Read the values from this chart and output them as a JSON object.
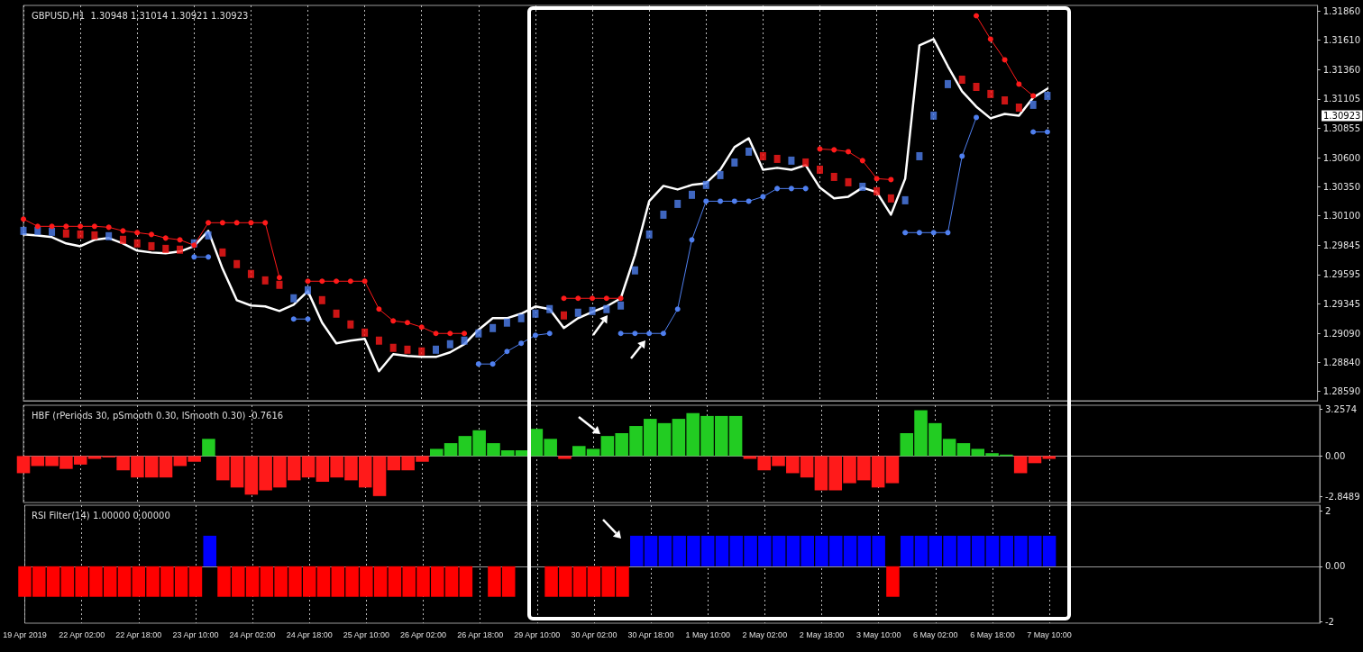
{
  "chart_data": [
    {
      "type": "line",
      "title": "GBPUSD,H1  1.30948 1.31014 1.30921 1.30923",
      "categories": [
        null,
        null,
        null,
        null,
        null,
        null,
        null,
        null,
        null,
        null,
        null,
        null,
        null,
        null,
        null,
        null,
        null,
        null,
        null,
        null,
        null,
        null,
        null,
        null,
        null,
        null,
        null,
        null,
        null,
        null,
        null,
        null,
        null,
        null,
        null,
        null,
        null,
        null,
        null,
        null,
        null,
        null,
        null,
        null,
        null,
        null,
        null,
        null,
        null,
        null,
        null,
        null,
        null,
        null,
        null,
        null,
        null,
        null,
        null,
        null,
        null,
        null,
        null,
        null,
        null,
        null,
        null,
        null,
        null,
        null,
        null,
        null,
        null,
        null,
        null,
        null,
        null,
        null,
        null,
        null,
        null,
        null,
        null,
        null,
        null,
        null,
        null,
        null,
        null,
        null,
        null,
        null
      ],
      "series": [
        {
          "color": "#ffffff",
          "marker": "none",
          "values": [
            1.2994,
            1.29932,
            1.29917,
            1.29863,
            1.29839,
            1.29894,
            1.29909,
            1.29863,
            1.29801,
            1.29785,
            1.29778,
            1.29793,
            1.29839,
            1.29971,
            1.29646,
            1.29375,
            1.29329,
            1.29321,
            1.29282,
            1.29336,
            1.29452,
            1.29182,
            1.29004,
            1.29027,
            1.29042,
            1.28764,
            1.28911,
            1.28895,
            1.28887,
            1.28887,
            1.28926,
            1.28996,
            1.2912,
            1.2922,
            1.2922,
            1.29259,
            1.29321,
            1.29298,
            1.29135,
            1.2922,
            1.29274,
            1.29321,
            1.29391,
            1.29762,
            1.30226,
            1.30358,
            1.30327,
            1.30366,
            1.30381,
            1.30497,
            1.30691,
            1.30768,
            1.30497,
            1.30513,
            1.30497,
            1.30536,
            1.30343,
            1.3025,
            1.30265,
            1.30343,
            1.30304,
            1.3011,
            1.3042,
            1.31566,
            1.3162,
            1.31387,
            1.31171,
            1.31039,
            1.30939,
            1.30977,
            1.30962,
            1.31117,
            1.31194,
            null,
            null,
            null,
            null,
            null,
            null,
            null,
            null,
            null,
            null,
            null,
            null,
            null,
            null,
            null,
            null,
            null,
            null,
            null
          ]
        },
        {
          "type": "scatter",
          "color": "#ff1a1a",
          "marker": "square",
          "values": [
            null,
            null,
            null,
            1.29948,
            1.2994,
            1.29932,
            null,
            1.29894,
            1.29863,
            1.29839,
            1.29816,
            1.29809,
            null,
            null,
            1.29785,
            1.29685,
            1.296,
            1.29545,
            1.29507,
            null,
            null,
            1.29375,
            1.29259,
            1.29166,
            1.29096,
            1.29027,
            1.28965,
            1.28949,
            1.28934,
            null,
            null,
            null,
            null,
            null,
            null,
            null,
            null,
            null,
            1.29244,
            null,
            null,
            null,
            null,
            null,
            null,
            null,
            null,
            null,
            null,
            null,
            null,
            null,
            1.30613,
            1.3059,
            null,
            1.30559,
            1.30497,
            1.30435,
            1.30389,
            null,
            1.30312,
            1.3025,
            null,
            null,
            null,
            null,
            1.31271,
            1.31209,
            1.31148,
            1.31093,
            1.31031,
            null,
            null,
            null,
            null,
            null,
            null,
            null,
            null,
            null,
            null,
            null,
            null,
            null,
            null,
            null,
            null,
            null,
            null,
            null,
            null,
            null
          ]
        },
        {
          "type": "scatter",
          "color": "#4f7fef",
          "marker": "square",
          "values": [
            1.29971,
            1.29971,
            1.29963,
            null,
            null,
            null,
            1.29925,
            null,
            null,
            null,
            null,
            null,
            1.29863,
            1.29932,
            null,
            null,
            null,
            null,
            null,
            1.29391,
            1.2946,
            null,
            null,
            null,
            null,
            null,
            null,
            null,
            null,
            1.28949,
            1.28996,
            1.29027,
            1.29089,
            1.29135,
            1.29182,
            1.2922,
            1.29259,
            1.29298,
            null,
            1.29267,
            1.29282,
            1.29298,
            1.29329,
            1.29631,
            1.2994,
            1.3011,
            1.30203,
            1.30281,
            1.30366,
            1.30451,
            1.30559,
            1.30652,
            null,
            null,
            1.30575,
            null,
            null,
            null,
            null,
            1.3035,
            null,
            null,
            1.30234,
            1.30613,
            1.30962,
            1.31233,
            null,
            null,
            null,
            null,
            null,
            1.31055,
            1.31132,
            null,
            null,
            null,
            null,
            null,
            null,
            null,
            null,
            null,
            null,
            null,
            null,
            null,
            null,
            null,
            null,
            null,
            null,
            null
          ]
        },
        {
          "type": "line",
          "color": "#ff1a1a",
          "marker": "circle",
          "values": [
            1.30072,
            1.3001,
            1.3001,
            1.3001,
            1.3001,
            1.3001,
            1.30002,
            1.29971,
            1.29956,
            1.2994,
            1.29909,
            1.29894,
            1.29847,
            1.30041,
            1.30041,
            1.30041,
            1.30041,
            1.30041,
            1.29569,
            null,
            1.29538,
            1.29538,
            1.29538,
            1.29538,
            1.29538,
            1.29298,
            1.29197,
            1.29182,
            1.29143,
            1.29089,
            1.29089,
            1.29089,
            null,
            null,
            null,
            null,
            null,
            null,
            1.29391,
            1.29391,
            1.29391,
            1.29391,
            1.29391,
            null,
            null,
            null,
            null,
            null,
            null,
            null,
            null,
            null,
            null,
            null,
            null,
            null,
            1.30675,
            1.30668,
            1.30652,
            1.30575,
            1.3042,
            1.30412,
            null,
            null,
            null,
            null,
            null,
            1.31821,
            1.3162,
            1.31442,
            1.31233,
            1.31132,
            null,
            null,
            null,
            null,
            null,
            null,
            null,
            null,
            null,
            null,
            null,
            null,
            null,
            null,
            null,
            null,
            null,
            null,
            null,
            null
          ]
        },
        {
          "type": "line",
          "color": "#4f7fef",
          "marker": "circle",
          "values": [
            null,
            null,
            null,
            null,
            null,
            null,
            null,
            null,
            null,
            null,
            null,
            null,
            1.29747,
            1.29747,
            null,
            null,
            null,
            null,
            null,
            1.29213,
            1.29213,
            null,
            null,
            null,
            null,
            null,
            null,
            null,
            null,
            null,
            null,
            null,
            1.28826,
            1.28826,
            1.28934,
            1.29004,
            1.29073,
            1.29089,
            null,
            null,
            null,
            null,
            1.29089,
            1.29089,
            1.29089,
            1.29089,
            1.29298,
            1.29894,
            1.30226,
            1.30226,
            1.30226,
            1.30226,
            1.30265,
            1.30335,
            1.30335,
            1.30335,
            null,
            null,
            null,
            null,
            null,
            null,
            1.29956,
            1.29956,
            1.29956,
            1.29956,
            1.30613,
            1.30946,
            null,
            null,
            null,
            1.30822,
            1.30822,
            null,
            null,
            null,
            null,
            null,
            null,
            null,
            null,
            null,
            null,
            null,
            null,
            null,
            null,
            null,
            null,
            null,
            null,
            null
          ]
        }
      ],
      "ylim": [
        1.2851,
        1.3191
      ],
      "yticks": [
        {
          "value": 1.2859,
          "label": "1.28590"
        },
        {
          "value": 1.2884,
          "label": "1.28840"
        },
        {
          "value": 1.2909,
          "label": "1.29090"
        },
        {
          "value": 1.29345,
          "label": "1.29345"
        },
        {
          "value": 1.29595,
          "label": "1.29595"
        },
        {
          "value": 1.29845,
          "label": "1.29845"
        },
        {
          "value": 1.301,
          "label": "1.30100"
        },
        {
          "value": 1.3035,
          "label": "1.30350"
        },
        {
          "value": 1.306,
          "label": "1.30600"
        },
        {
          "value": 1.30855,
          "label": "1.30855"
        },
        {
          "value": 1.31105,
          "label": "1.31105"
        },
        {
          "value": 1.3136,
          "label": "1.31360"
        },
        {
          "value": 1.3161,
          "label": "1.31610"
        },
        {
          "value": 1.3186,
          "label": "1.31860"
        }
      ],
      "annotations": [
        "1.30923"
      ],
      "grid": "x",
      "tick_labels": "y"
    },
    {
      "type": "bar",
      "title": "HBF (rPeriods 30, pSmooth 0.30, lSmooth 0.30) -0.7616",
      "categories": [
        null,
        null,
        null,
        null,
        null,
        null,
        null,
        null,
        null,
        null,
        null,
        null,
        null,
        null,
        null,
        null,
        null,
        null,
        null,
        null,
        null,
        null,
        null,
        null,
        null,
        null,
        null,
        null,
        null,
        null,
        null,
        null,
        null,
        null,
        null,
        null,
        null,
        null,
        null,
        null,
        null,
        null,
        null,
        null,
        null,
        null,
        null,
        null,
        null,
        null,
        null,
        null,
        null,
        null,
        null,
        null,
        null,
        null,
        null,
        null,
        null,
        null,
        null,
        null,
        null,
        null,
        null,
        null,
        null,
        null,
        null,
        null,
        null,
        null,
        null,
        null,
        null,
        null,
        null,
        null,
        null,
        null,
        null,
        null,
        null,
        null,
        null,
        null,
        null,
        null,
        null,
        null
      ],
      "series": [
        {
          "color": "#22cc22",
          "values": [
            null,
            null,
            null,
            null,
            null,
            null,
            null,
            null,
            null,
            null,
            null,
            null,
            null,
            1.2,
            null,
            null,
            null,
            null,
            null,
            null,
            null,
            null,
            null,
            null,
            null,
            null,
            null,
            null,
            null,
            0.5,
            0.9,
            1.4,
            1.8,
            0.9,
            0.4,
            0.4,
            1.9,
            1.2,
            null,
            0.7,
            0.5,
            1.4,
            1.6,
            2.1,
            2.6,
            2.3,
            2.6,
            3.0,
            2.8,
            2.8,
            2.8,
            null,
            null,
            null,
            null,
            null,
            null,
            null,
            null,
            null,
            null,
            null,
            1.6,
            3.2,
            2.3,
            1.2,
            0.9,
            0.5,
            0.2,
            0.1,
            null,
            null,
            null,
            null,
            null,
            null,
            null,
            null,
            null,
            null,
            null,
            null,
            null,
            null,
            null,
            null,
            null,
            null,
            null,
            null,
            null,
            null
          ]
        },
        {
          "color": "#ff1a1a",
          "values": [
            -1.2,
            -0.7,
            -0.7,
            -0.9,
            -0.6,
            -0.2,
            -0.1,
            -1.0,
            -1.5,
            -1.5,
            -1.5,
            -0.7,
            -0.4,
            null,
            -1.7,
            -2.2,
            -2.7,
            -2.4,
            -2.2,
            -1.7,
            -1.5,
            -1.8,
            -1.5,
            -1.7,
            -2.2,
            -2.8,
            -1.0,
            -1.0,
            -0.4,
            null,
            null,
            null,
            null,
            null,
            null,
            null,
            null,
            null,
            -0.2,
            null,
            null,
            null,
            null,
            null,
            null,
            null,
            null,
            null,
            null,
            null,
            null,
            -0.2,
            -1.0,
            -0.7,
            -1.2,
            -1.5,
            -2.4,
            -2.4,
            -1.9,
            -1.7,
            -2.2,
            -1.9,
            null,
            null,
            null,
            null,
            null,
            null,
            null,
            null,
            -1.2,
            -0.5,
            -0.2,
            null,
            null,
            null,
            null,
            null,
            null,
            null,
            null,
            null,
            null,
            null,
            null,
            null,
            null,
            null,
            null,
            null,
            null,
            null
          ]
        }
      ],
      "ylim": [
        -3.25,
        3.55
      ],
      "yticks": [
        3.2574,
        {
          "value": 0,
          "label": "0.00"
        },
        -2.8489
      ],
      "grid": "x",
      "tick_labels": "y"
    },
    {
      "type": "bar",
      "title": "RSI Filter(14) 1.00000 0.00000",
      "categories": [
        "19 Apr 2019",
        null,
        null,
        null,
        "22 Apr 02:00",
        null,
        null,
        null,
        "22 Apr 18:00",
        null,
        null,
        null,
        "23 Apr 10:00",
        null,
        null,
        null,
        "24 Apr 02:00",
        null,
        null,
        null,
        "24 Apr 18:00",
        null,
        null,
        null,
        "25 Apr 10:00",
        null,
        null,
        null,
        "26 Apr 02:00",
        null,
        null,
        null,
        "26 Apr 18:00",
        null,
        null,
        null,
        "29 Apr 10:00",
        null,
        null,
        null,
        "30 Apr 02:00",
        null,
        null,
        null,
        "30 Apr 18:00",
        null,
        null,
        null,
        "1 May 10:00",
        null,
        null,
        null,
        "2 May 02:00",
        null,
        null,
        null,
        "2 May 18:00",
        null,
        null,
        null,
        "3 May 10:00",
        null,
        null,
        null,
        "6 May 02:00",
        null,
        null,
        null,
        "6 May 18:00",
        null,
        null,
        null,
        "7 May 10:00",
        null,
        null,
        null,
        null,
        null,
        null,
        null,
        null,
        null,
        null,
        null,
        null,
        null,
        null,
        null,
        null,
        null,
        null,
        null
      ],
      "series": [
        {
          "color": "#0000ff",
          "values": [
            null,
            null,
            null,
            null,
            null,
            null,
            null,
            null,
            null,
            null,
            null,
            null,
            null,
            1.1,
            null,
            null,
            null,
            null,
            null,
            null,
            null,
            null,
            null,
            null,
            null,
            null,
            null,
            null,
            null,
            null,
            null,
            null,
            null,
            null,
            null,
            null,
            null,
            null,
            null,
            null,
            null,
            null,
            null,
            1.1,
            1.1,
            1.1,
            1.1,
            1.1,
            1.1,
            1.1,
            1.1,
            1.1,
            1.1,
            1.1,
            1.1,
            1.1,
            1.1,
            1.1,
            1.1,
            1.1,
            1.1,
            null,
            1.1,
            1.1,
            1.1,
            1.1,
            1.1,
            1.1,
            1.1,
            1.1,
            1.1,
            1.1,
            1.1,
            null,
            null,
            null,
            null,
            null,
            null,
            null,
            null,
            null,
            null,
            null,
            null,
            null,
            null,
            null,
            null,
            null,
            null,
            null
          ]
        },
        {
          "color": "#ff0000",
          "values": [
            -1.1,
            -1.1,
            -1.1,
            -1.1,
            -1.1,
            -1.1,
            -1.1,
            -1.1,
            -1.1,
            -1.1,
            -1.1,
            -1.1,
            -1.1,
            null,
            -1.1,
            -1.1,
            -1.1,
            -1.1,
            -1.1,
            -1.1,
            -1.1,
            -1.1,
            -1.1,
            -1.1,
            -1.1,
            -1.1,
            -1.1,
            -1.1,
            -1.1,
            -1.1,
            -1.1,
            -1.1,
            null,
            -1.1,
            -1.1,
            null,
            null,
            -1.1,
            -1.1,
            -1.1,
            -1.1,
            -1.1,
            -1.1,
            null,
            null,
            null,
            null,
            null,
            null,
            null,
            null,
            null,
            null,
            null,
            null,
            null,
            null,
            null,
            null,
            null,
            null,
            -1.1,
            null,
            null,
            null,
            null,
            null,
            null,
            null,
            null,
            null,
            null,
            null,
            null,
            null,
            null,
            null,
            null,
            null,
            null,
            null,
            null,
            null,
            null,
            null,
            null,
            null,
            null,
            null,
            null,
            null,
            null
          ]
        }
      ],
      "ylim": [
        -2.05,
        2.2
      ],
      "yticks": [
        2,
        {
          "value": 0,
          "label": "0.00"
        },
        -2
      ],
      "grid": "x"
    }
  ]
}
